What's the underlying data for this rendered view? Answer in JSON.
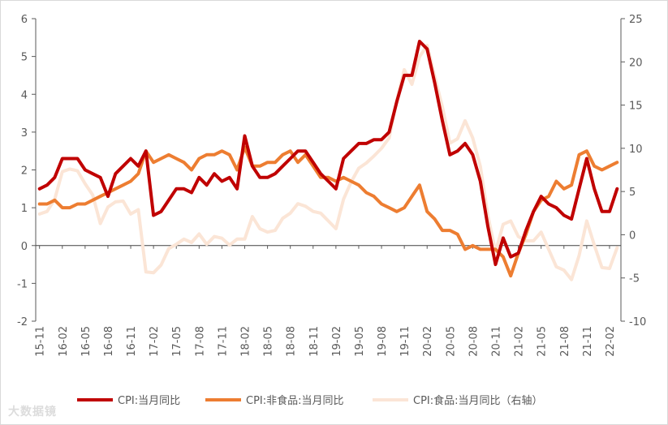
{
  "chart_data": {
    "type": "line",
    "title": "",
    "xlabel": "",
    "ylabel": "",
    "ylim": [
      -2,
      6
    ],
    "y2lim": [
      -10,
      25
    ],
    "yticks": [
      -2,
      -1,
      0,
      1,
      2,
      3,
      4,
      5,
      6
    ],
    "y2ticks": [
      -10,
      -5,
      0,
      5,
      10,
      15,
      20,
      25
    ],
    "x": [
      "15-11",
      "15-12",
      "16-01",
      "16-02",
      "16-03",
      "16-04",
      "16-05",
      "16-06",
      "16-07",
      "16-08",
      "16-09",
      "16-10",
      "16-11",
      "16-12",
      "17-01",
      "17-02",
      "17-03",
      "17-04",
      "17-05",
      "17-06",
      "17-07",
      "17-08",
      "17-09",
      "17-10",
      "17-11",
      "17-12",
      "18-01",
      "18-02",
      "18-03",
      "18-04",
      "18-05",
      "18-06",
      "18-07",
      "18-08",
      "18-09",
      "18-10",
      "18-11",
      "18-12",
      "19-01",
      "19-02",
      "19-03",
      "19-04",
      "19-05",
      "19-06",
      "19-07",
      "19-08",
      "19-09",
      "19-10",
      "19-11",
      "19-12",
      "20-01",
      "20-02",
      "20-03",
      "20-04",
      "20-05",
      "20-06",
      "20-07",
      "20-08",
      "20-09",
      "20-10",
      "20-11",
      "20-12",
      "21-01",
      "21-02",
      "21-03",
      "21-04",
      "21-05",
      "21-06",
      "21-07",
      "21-08",
      "21-09",
      "21-10",
      "21-11",
      "21-12",
      "22-01",
      "22-02",
      "22-03"
    ],
    "xticklabels": [
      "15-11",
      "16-02",
      "16-05",
      "16-08",
      "16-11",
      "17-02",
      "17-05",
      "17-08",
      "17-11",
      "18-02",
      "18-05",
      "18-08",
      "18-11",
      "19-02",
      "19-05",
      "19-08",
      "19-11",
      "20-02",
      "20-05",
      "20-08",
      "20-11",
      "21-02",
      "21-05",
      "21-08",
      "21-11",
      "22-02"
    ],
    "series": [
      {
        "name": "CPI:当月同比",
        "axis": "left",
        "color": "#c00000",
        "values": [
          1.5,
          1.6,
          1.8,
          2.3,
          2.3,
          2.3,
          2.0,
          1.9,
          1.8,
          1.3,
          1.9,
          2.1,
          2.3,
          2.1,
          2.5,
          0.8,
          0.9,
          1.2,
          1.5,
          1.5,
          1.4,
          1.8,
          1.6,
          1.9,
          1.7,
          1.8,
          1.5,
          2.9,
          2.1,
          1.8,
          1.8,
          1.9,
          2.1,
          2.3,
          2.5,
          2.5,
          2.2,
          1.9,
          1.7,
          1.5,
          2.3,
          2.5,
          2.7,
          2.7,
          2.8,
          2.8,
          3.0,
          3.8,
          4.5,
          4.5,
          5.4,
          5.2,
          4.3,
          3.3,
          2.4,
          2.5,
          2.7,
          2.4,
          1.7,
          0.5,
          -0.5,
          0.2,
          -0.3,
          -0.2,
          0.4,
          0.9,
          1.3,
          1.1,
          1.0,
          0.8,
          0.7,
          1.5,
          2.3,
          1.5,
          0.9,
          0.9,
          1.5
        ]
      },
      {
        "name": "CPI:非食品:当月同比",
        "axis": "left",
        "color": "#ed7d31",
        "values": [
          1.1,
          1.1,
          1.2,
          1.0,
          1.0,
          1.1,
          1.1,
          1.2,
          1.3,
          1.4,
          1.5,
          1.6,
          1.7,
          1.9,
          2.5,
          2.2,
          2.3,
          2.4,
          2.3,
          2.2,
          2.0,
          2.3,
          2.4,
          2.4,
          2.5,
          2.4,
          2.0,
          2.6,
          2.1,
          2.1,
          2.2,
          2.2,
          2.4,
          2.5,
          2.2,
          2.4,
          2.1,
          1.8,
          1.8,
          1.7,
          1.8,
          1.7,
          1.6,
          1.4,
          1.3,
          1.1,
          1.0,
          0.9,
          1.0,
          1.3,
          1.6,
          0.9,
          0.7,
          0.4,
          0.4,
          0.3,
          -0.1,
          0.0,
          -0.1,
          -0.1,
          -0.1,
          -0.3,
          -0.8,
          -0.2,
          0.3,
          0.9,
          1.2,
          1.3,
          1.7,
          1.5,
          1.6,
          2.4,
          2.5,
          2.1,
          2.0,
          2.1,
          2.2
        ]
      },
      {
        "name": "CPI:食品:当月同比（右轴）",
        "axis": "right",
        "color": "#fbe5d6",
        "values": [
          2.4,
          2.7,
          4.1,
          7.3,
          7.6,
          7.4,
          5.9,
          4.6,
          1.3,
          3.2,
          3.8,
          3.9,
          2.4,
          2.9,
          -4.3,
          -4.4,
          -3.5,
          -1.6,
          -1.1,
          -0.5,
          -0.9,
          0.1,
          -1.1,
          -0.2,
          -0.4,
          -1.2,
          -0.5,
          -0.5,
          2.1,
          0.7,
          0.3,
          0.5,
          1.9,
          2.5,
          3.6,
          3.3,
          2.7,
          2.5,
          1.6,
          0.7,
          4.1,
          6.1,
          7.7,
          8.3,
          9.1,
          10.0,
          11.2,
          15.5,
          19.1,
          17.4,
          20.6,
          21.9,
          18.3,
          14.8,
          10.6,
          11.1,
          13.2,
          11.2,
          7.9,
          2.2,
          -2.0,
          1.2,
          1.6,
          -0.2,
          -0.7,
          -0.7,
          0.3,
          -1.7,
          -3.7,
          -4.1,
          -5.2,
          -2.4,
          1.6,
          -1.2,
          -3.8,
          -3.9,
          -1.5
        ]
      }
    ]
  },
  "legend": [
    {
      "label": "CPI:当月同比",
      "color": "#c00000"
    },
    {
      "label": "CPI:非食品:当月同比",
      "color": "#ed7d31"
    },
    {
      "label": "CPI:食品:当月同比（右轴）",
      "color": "#fbe5d6"
    }
  ],
  "watermark": "大数据镜"
}
